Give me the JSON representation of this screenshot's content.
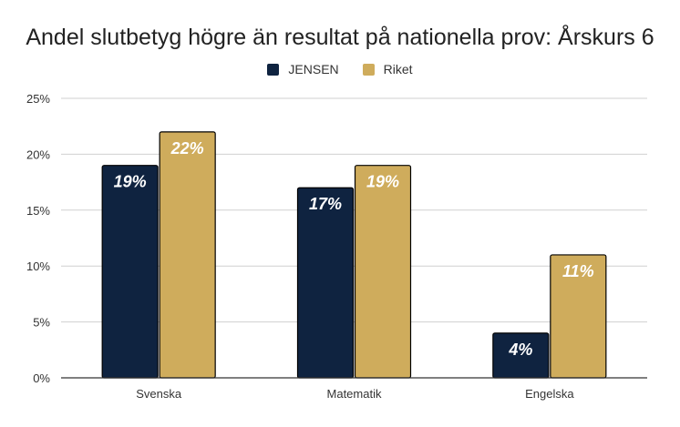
{
  "chart_data": {
    "type": "bar",
    "title": "Andel slutbetyg högre än resultat på nationella prov: Årskurs 6",
    "categories": [
      "Svenska",
      "Matematik",
      "Engelska"
    ],
    "series": [
      {
        "name": "JENSEN",
        "values": [
          19,
          17,
          4
        ],
        "color": "#0f2340"
      },
      {
        "name": "Riket",
        "values": [
          22,
          19,
          11
        ],
        "color": "#cfac5c"
      }
    ],
    "data_labels": [
      [
        "19%",
        "17%",
        "4%"
      ],
      [
        "22%",
        "19%",
        "11%"
      ]
    ],
    "y_ticks": [
      "0%",
      "5%",
      "10%",
      "15%",
      "20%",
      "25%"
    ],
    "ylim": [
      0,
      25
    ],
    "grid": true,
    "legend_position": "top"
  }
}
